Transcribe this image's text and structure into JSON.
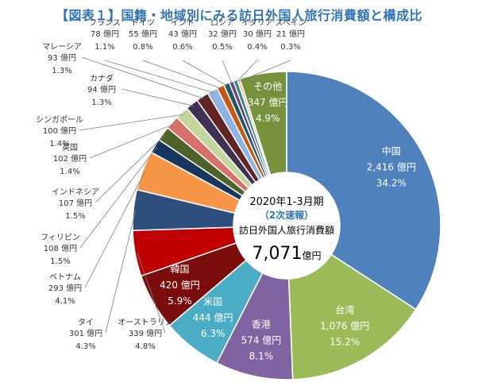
{
  "title": "【図表１】国籍・地域別にみる訪日外国人旅行消費額と構成比",
  "chart_data": {
    "type": "pie",
    "title": "【図表１】国籍・地域別にみる訪日外国人旅行消費額と構成比",
    "center": {
      "period": "2020年1-3月期",
      "note": "（2次速報）",
      "label": "訪日外国人旅行消費額",
      "total": "7,071",
      "unit": "億円"
    },
    "slices": [
      {
        "name": "中国",
        "value": 2416,
        "value_label": "2,416 億円",
        "pct": "34.2%",
        "color": "#4f81bd"
      },
      {
        "name": "台湾",
        "value": 1076,
        "value_label": "1,076 億円",
        "pct": "15.2%",
        "color": "#9bbb59"
      },
      {
        "name": "香港",
        "value": 574,
        "value_label": "574 億円",
        "pct": "8.1%",
        "color": "#8064a2"
      },
      {
        "name": "米国",
        "value": 444,
        "value_label": "444 億円",
        "pct": "6.3%",
        "color": "#4bacc6"
      },
      {
        "name": "韓国",
        "value": 420,
        "value_label": "420 億円",
        "pct": "5.9%",
        "color": "#7b0c0c"
      },
      {
        "name": "オーストラリア",
        "value": 339,
        "value_label": "339 億円",
        "pct": "4.8%",
        "color": "#c00000"
      },
      {
        "name": "タイ",
        "value": 301,
        "value_label": "301 億円",
        "pct": "4.3%",
        "color": "#2e4e7e"
      },
      {
        "name": "ベトナム",
        "value": 293,
        "value_label": "293 億円",
        "pct": "4.1%",
        "color": "#f79646"
      },
      {
        "name": "フィリピン",
        "value": 108,
        "value_label": "108 億円",
        "pct": "1.5%",
        "color": "#17375e"
      },
      {
        "name": "インドネシア",
        "value": 107,
        "value_label": "107 億円",
        "pct": "1.5%",
        "color": "#4f6228"
      },
      {
        "name": "英国",
        "value": 102,
        "value_label": "102 億円",
        "pct": "1.4%",
        "color": "#d9716b"
      },
      {
        "name": "シンガポール",
        "value": 100,
        "value_label": "100 億円",
        "pct": "1.4%",
        "color": "#c3d69b"
      },
      {
        "name": "カナダ",
        "value": 94,
        "value_label": "94 億円",
        "pct": "1.3%",
        "color": "#3f3151"
      },
      {
        "name": "マレーシア",
        "value": 93,
        "value_label": "93 億円",
        "pct": "1.3%",
        "color": "#632523"
      },
      {
        "name": "フランス",
        "value": 78,
        "value_label": "78 億円",
        "pct": "1.1%",
        "color": "#8eb4e3"
      },
      {
        "name": "ドイツ",
        "value": 55,
        "value_label": "55 億円",
        "pct": "0.8%",
        "color": "#c65911"
      },
      {
        "name": "インド",
        "value": 43,
        "value_label": "43 億円",
        "pct": "0.6%",
        "color": "#215868"
      },
      {
        "name": "ロシア",
        "value": 32,
        "value_label": "32 億円",
        "pct": "0.5%",
        "color": "#604a7b"
      },
      {
        "name": "イタリア",
        "value": 30,
        "value_label": "30 億円",
        "pct": "0.4%",
        "color": "#31859c"
      },
      {
        "name": "スペイン",
        "value": 21,
        "value_label": "21 億円",
        "pct": "0.3%",
        "color": "#fac090"
      },
      {
        "name": "その他",
        "value": 347,
        "value_label": "347 億円",
        "pct": "4.9%",
        "color": "#76923c"
      }
    ]
  }
}
